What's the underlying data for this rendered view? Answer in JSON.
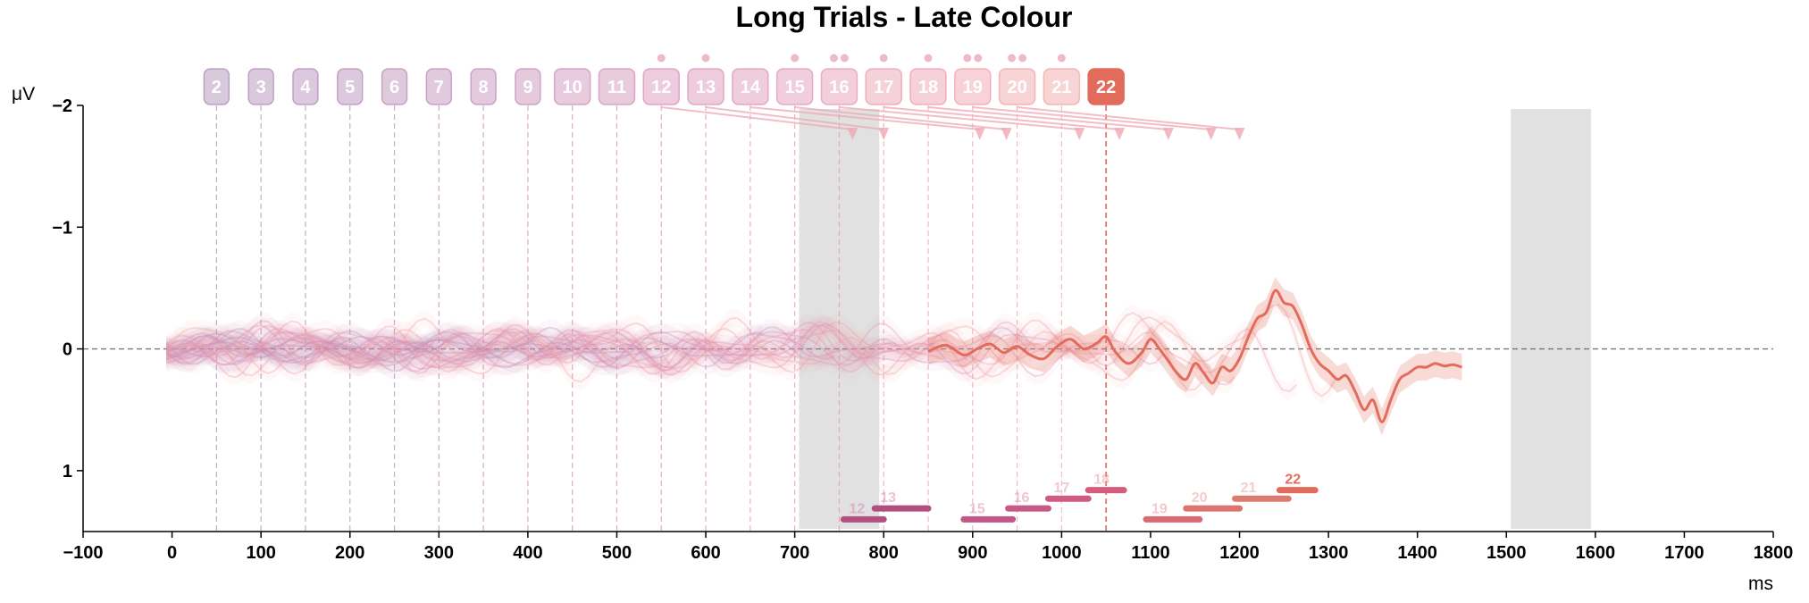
{
  "chart_data": {
    "type": "line",
    "title": "Long Trials - Late Colour",
    "xlabel": "ms",
    "ylabel": "μV",
    "xlim": [
      -100,
      1800
    ],
    "ylim": [
      -2,
      1.5
    ],
    "y_inverted": true,
    "xticks": [
      -100,
      0,
      100,
      200,
      300,
      400,
      500,
      600,
      700,
      800,
      900,
      1000,
      1100,
      1200,
      1300,
      1400,
      1500,
      1600,
      1700,
      1800
    ],
    "yticks": [
      -2,
      -1,
      0,
      1
    ],
    "ytick_labels": [
      "−2",
      "−1",
      "0",
      "1"
    ],
    "zero_line": 0,
    "grey_bands": [
      [
        705,
        795
      ],
      [
        1505,
        1595
      ]
    ],
    "trials": [
      {
        "label": "2",
        "onset": 50,
        "color": "#a887b1"
      },
      {
        "label": "3",
        "onset": 100,
        "color": "#ac87b2"
      },
      {
        "label": "4",
        "onset": 150,
        "color": "#b087b3"
      },
      {
        "label": "5",
        "onset": 200,
        "color": "#b487b3"
      },
      {
        "label": "6",
        "onset": 250,
        "color": "#b988b4"
      },
      {
        "label": "7",
        "onset": 300,
        "color": "#bd88b5"
      },
      {
        "label": "8",
        "onset": 350,
        "color": "#c189b5"
      },
      {
        "label": "9",
        "onset": 400,
        "color": "#c68ab6"
      },
      {
        "label": "10",
        "onset": 450,
        "color": "#cb8bb6"
      },
      {
        "label": "11",
        "onset": 500,
        "color": "#cf8cb6"
      },
      {
        "label": "12",
        "onset": 550,
        "color": "#d48db6"
      },
      {
        "label": "13",
        "onset": 600,
        "color": "#d88fb5"
      },
      {
        "label": "14",
        "onset": 650,
        "color": "#dc91b4"
      },
      {
        "label": "15",
        "onset": 700,
        "color": "#e193b3"
      },
      {
        "label": "16",
        "onset": 750,
        "color": "#e495b1"
      },
      {
        "label": "17",
        "onset": 800,
        "color": "#e898ae"
      },
      {
        "label": "18",
        "onset": 850,
        "color": "#eb9aab"
      },
      {
        "label": "19",
        "onset": 900,
        "color": "#ed9ca8"
      },
      {
        "label": "20",
        "onset": 950,
        "color": "#ef9fa4"
      },
      {
        "label": "21",
        "onset": 1000,
        "color": "#f0a2a0"
      },
      {
        "label": "22",
        "onset": 1050,
        "color": "#e36b5c",
        "highlight": true
      }
    ],
    "marker_dots": [
      {
        "trial": "12",
        "count": 1
      },
      {
        "trial": "13",
        "count": 1
      },
      {
        "trial": "15",
        "count": 1
      },
      {
        "trial": "16",
        "count": 2
      },
      {
        "trial": "17",
        "count": 1
      },
      {
        "trial": "18",
        "count": 1
      },
      {
        "trial": "19",
        "count": 2
      },
      {
        "trial": "20",
        "count": 2
      },
      {
        "trial": "21",
        "count": 1
      }
    ],
    "arrows": [
      {
        "from": 550,
        "to": 765
      },
      {
        "from": 600,
        "to": 800
      },
      {
        "from": 650,
        "to": 908
      },
      {
        "from": 700,
        "to": 938
      },
      {
        "from": 750,
        "to": 1020
      },
      {
        "from": 800,
        "to": 1065
      },
      {
        "from": 850,
        "to": 1120
      },
      {
        "from": 900,
        "to": 1168
      },
      {
        "from": 950,
        "to": 1200
      }
    ],
    "significance_bars": [
      {
        "label": "12",
        "start": 755,
        "end": 800,
        "y": 1.4,
        "color": "#b4507f"
      },
      {
        "label": "13",
        "start": 790,
        "end": 850,
        "y": 1.31,
        "color": "#b04f80"
      },
      {
        "label": "15",
        "start": 890,
        "end": 945,
        "y": 1.4,
        "color": "#c2578a"
      },
      {
        "label": "16",
        "start": 940,
        "end": 985,
        "y": 1.31,
        "color": "#c85886"
      },
      {
        "label": "17",
        "start": 985,
        "end": 1030,
        "y": 1.23,
        "color": "#cf5b83"
      },
      {
        "label": "18",
        "start": 1030,
        "end": 1070,
        "y": 1.16,
        "color": "#d55c7c"
      },
      {
        "label": "19",
        "start": 1095,
        "end": 1155,
        "y": 1.4,
        "color": "#d96a72"
      },
      {
        "label": "20",
        "start": 1140,
        "end": 1200,
        "y": 1.31,
        "color": "#dc7470"
      },
      {
        "label": "21",
        "start": 1195,
        "end": 1255,
        "y": 1.23,
        "color": "#de7a6f"
      },
      {
        "label": "22",
        "start": 1245,
        "end": 1285,
        "y": 1.16,
        "color": "#e36b5c"
      }
    ],
    "highlight_series": {
      "name": "22",
      "color": "#e36b5c",
      "x": [
        850,
        870,
        890,
        905,
        920,
        935,
        950,
        965,
        980,
        995,
        1010,
        1025,
        1040,
        1050,
        1060,
        1075,
        1090,
        1100,
        1110,
        1120,
        1130,
        1140,
        1150,
        1160,
        1170,
        1180,
        1190,
        1200,
        1210,
        1220,
        1230,
        1240,
        1250,
        1260,
        1270,
        1280,
        1290,
        1300,
        1310,
        1320,
        1330,
        1340,
        1350,
        1360,
        1370,
        1380,
        1390,
        1400,
        1410,
        1420,
        1430,
        1440,
        1450
      ],
      "y": [
        0.02,
        -0.03,
        0.05,
        0.0,
        -0.04,
        0.03,
        -0.02,
        0.05,
        0.08,
        -0.02,
        -0.08,
        0.0,
        -0.05,
        -0.1,
        0.02,
        0.12,
        0.03,
        -0.08,
        0.0,
        0.1,
        0.2,
        0.25,
        0.12,
        0.2,
        0.28,
        0.15,
        0.18,
        0.08,
        -0.1,
        -0.25,
        -0.3,
        -0.48,
        -0.38,
        -0.35,
        -0.2,
        0.0,
        0.12,
        0.18,
        0.25,
        0.22,
        0.35,
        0.5,
        0.42,
        0.6,
        0.42,
        0.25,
        0.2,
        0.15,
        0.15,
        0.12,
        0.14,
        0.13,
        0.15
      ]
    }
  }
}
